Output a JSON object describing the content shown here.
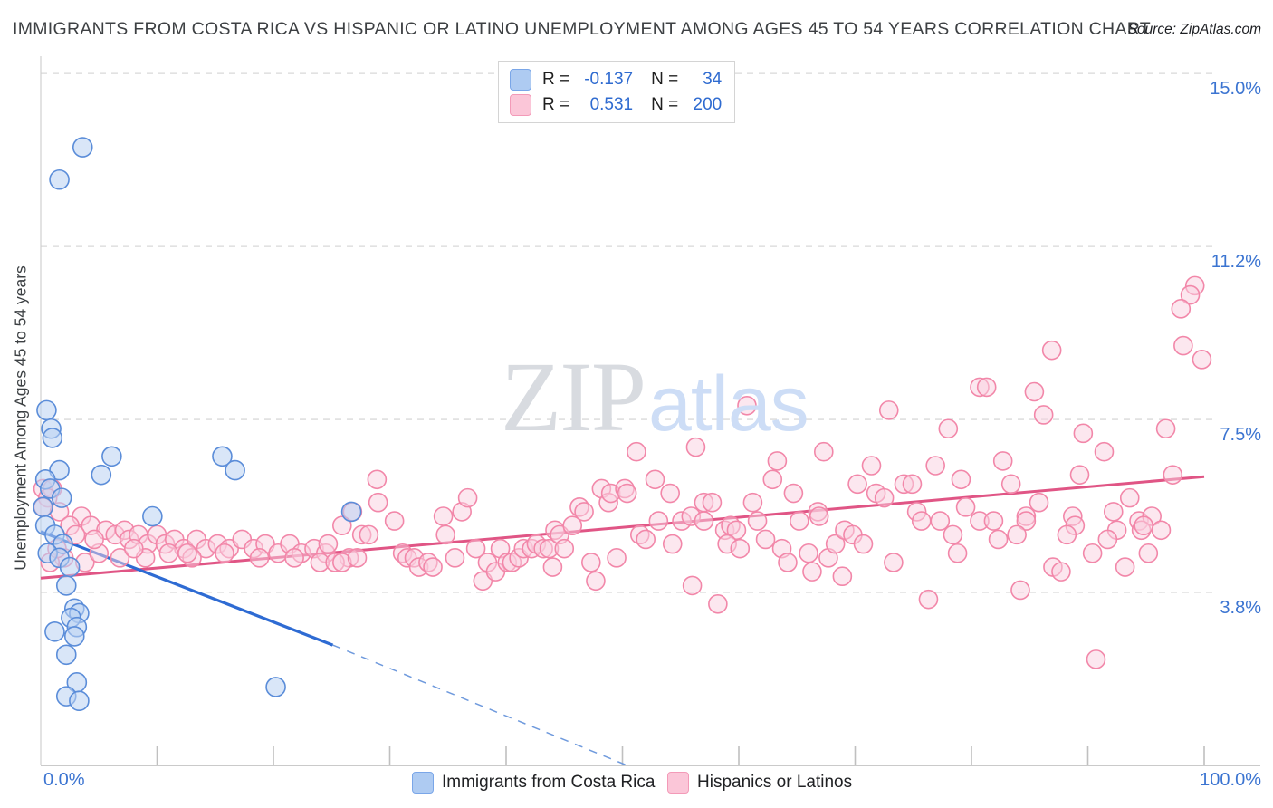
{
  "header": {
    "title": "IMMIGRANTS FROM COSTA RICA VS HISPANIC OR LATINO UNEMPLOYMENT AMONG AGES 45 TO 54 YEARS CORRELATION CHART",
    "source": "Source: ZipAtlas.com"
  },
  "y_axis": {
    "title": "Unemployment Among Ages 45 to 54 years",
    "ticks": [
      {
        "label": "15.0%",
        "value": 15.0
      },
      {
        "label": "11.2%",
        "value": 11.25
      },
      {
        "label": "7.5%",
        "value": 7.5
      },
      {
        "label": "3.8%",
        "value": 3.75
      }
    ]
  },
  "x_axis": {
    "min_label": "0.0%",
    "max_label": "100.0%",
    "min": 0,
    "max": 100,
    "tick_count": 10
  },
  "legend_box": {
    "rows": [
      {
        "series": "Immigrants from Costa Rica",
        "r_label": "R =",
        "r_value": "-0.137",
        "n_label": "N =",
        "n_value": "34"
      },
      {
        "series": "Hispanics or Latinos",
        "r_label": "R =",
        "r_value": "0.531",
        "n_label": "N =",
        "n_value": "200"
      }
    ]
  },
  "bottom_legend": {
    "items": [
      {
        "label": "Immigrants from Costa Rica",
        "series": "blue"
      },
      {
        "label": "Hispanics or Latinos",
        "series": "pink"
      }
    ]
  },
  "watermark": {
    "zip": "ZIP",
    "atlas": "atlas"
  },
  "colors": {
    "blue_point_stroke": "#5b8dd9",
    "blue_point_fill": "#bad2f3",
    "pink_point_stroke": "#f287a9",
    "pink_point_fill": "#f9cfdf",
    "blue_trend": "#2e6bd3",
    "blue_trend_dash": "#6f9add",
    "pink_trend": "#e05585",
    "grid": "#d9d9d9",
    "axis": "#b9b9b9",
    "tick": "#c0c0c0",
    "label_blue": "#3b74d1"
  },
  "chart_data": {
    "type": "scatter",
    "title": "Immigrants from Costa Rica vs Hispanic or Latino Unemployment Among Ages 45 to 54 years",
    "xlabel": "Immigrants from Costa Rica (%)",
    "ylabel": "Unemployment Among Ages 45 to 54 years (%)",
    "xlim": [
      0,
      100
    ],
    "ylim": [
      0,
      15.4
    ],
    "grid": "horizontal-dashed",
    "legend_position": "top-center",
    "series": [
      {
        "name": "Immigrants from Costa Rica",
        "R": -0.137,
        "N": 34,
        "points": [
          [
            3.6,
            13.4
          ],
          [
            1.6,
            12.7
          ],
          [
            0.5,
            7.7
          ],
          [
            0.9,
            7.3
          ],
          [
            1.0,
            7.1
          ],
          [
            6.1,
            6.7
          ],
          [
            15.6,
            6.7
          ],
          [
            16.7,
            6.4
          ],
          [
            5.2,
            6.3
          ],
          [
            1.6,
            6.4
          ],
          [
            0.4,
            6.2
          ],
          [
            0.8,
            6.0
          ],
          [
            1.8,
            5.8
          ],
          [
            0.2,
            5.6
          ],
          [
            26.7,
            5.5
          ],
          [
            9.6,
            5.4
          ],
          [
            0.4,
            5.2
          ],
          [
            1.2,
            5.0
          ],
          [
            1.9,
            4.8
          ],
          [
            0.6,
            4.6
          ],
          [
            1.6,
            4.5
          ],
          [
            2.5,
            4.3
          ],
          [
            2.2,
            3.9
          ],
          [
            2.9,
            3.4
          ],
          [
            3.3,
            3.3
          ],
          [
            2.6,
            3.2
          ],
          [
            3.1,
            3.0
          ],
          [
            1.2,
            2.9
          ],
          [
            2.9,
            2.8
          ],
          [
            2.2,
            2.4
          ],
          [
            3.1,
            1.8
          ],
          [
            20.2,
            1.7
          ],
          [
            2.2,
            1.5
          ],
          [
            3.3,
            1.4
          ]
        ]
      },
      {
        "name": "Hispanics or Latinos",
        "R": 0.531,
        "N": 200,
        "points": [
          [
            0.2,
            6.0
          ],
          [
            1.0,
            6.0
          ],
          [
            0.6,
            5.8
          ],
          [
            0.2,
            5.6
          ],
          [
            1.6,
            5.5
          ],
          [
            3.5,
            5.4
          ],
          [
            2.5,
            5.2
          ],
          [
            4.3,
            5.2
          ],
          [
            5.6,
            5.1
          ],
          [
            3.0,
            5.0
          ],
          [
            6.4,
            5.0
          ],
          [
            7.2,
            5.1
          ],
          [
            7.6,
            4.9
          ],
          [
            8.4,
            5.0
          ],
          [
            9.2,
            4.8
          ],
          [
            10.0,
            5.0
          ],
          [
            10.7,
            4.8
          ],
          [
            11.5,
            4.9
          ],
          [
            12.3,
            4.7
          ],
          [
            13.4,
            4.9
          ],
          [
            14.2,
            4.7
          ],
          [
            15.2,
            4.8
          ],
          [
            16.2,
            4.7
          ],
          [
            17.3,
            4.9
          ],
          [
            18.3,
            4.7
          ],
          [
            19.3,
            4.8
          ],
          [
            20.4,
            4.6
          ],
          [
            21.4,
            4.8
          ],
          [
            22.4,
            4.6
          ],
          [
            23.5,
            4.7
          ],
          [
            24.5,
            4.6
          ],
          [
            2.0,
            4.5
          ],
          [
            3.8,
            4.4
          ],
          [
            5.0,
            4.6
          ],
          [
            6.8,
            4.5
          ],
          [
            9.0,
            4.5
          ],
          [
            11.0,
            4.6
          ],
          [
            13.0,
            4.5
          ],
          [
            15.8,
            4.6
          ],
          [
            18.8,
            4.5
          ],
          [
            21.8,
            4.5
          ],
          [
            24.0,
            4.4
          ],
          [
            26.5,
            4.5
          ],
          [
            4.6,
            4.9
          ],
          [
            8.0,
            4.7
          ],
          [
            12.6,
            4.6
          ],
          [
            0.8,
            4.4
          ],
          [
            1.4,
            4.7
          ],
          [
            28.9,
            6.2
          ],
          [
            29.0,
            5.7
          ],
          [
            26.8,
            5.5
          ],
          [
            27.6,
            5.0
          ],
          [
            28.2,
            5.0
          ],
          [
            24.7,
            4.8
          ],
          [
            25.3,
            4.4
          ],
          [
            25.9,
            4.4
          ],
          [
            30.4,
            5.3
          ],
          [
            31.1,
            4.6
          ],
          [
            31.5,
            4.5
          ],
          [
            32.1,
            4.5
          ],
          [
            32.5,
            4.3
          ],
          [
            33.3,
            4.4
          ],
          [
            33.7,
            4.3
          ],
          [
            34.6,
            5.4
          ],
          [
            34.8,
            5.0
          ],
          [
            35.6,
            4.5
          ],
          [
            36.2,
            5.5
          ],
          [
            36.7,
            5.8
          ],
          [
            37.4,
            4.7
          ],
          [
            38.0,
            4.0
          ],
          [
            38.4,
            4.4
          ],
          [
            39.1,
            4.2
          ],
          [
            39.5,
            4.7
          ],
          [
            40.1,
            4.4
          ],
          [
            40.5,
            4.4
          ],
          [
            41.1,
            4.5
          ],
          [
            41.5,
            4.7
          ],
          [
            42.2,
            4.7
          ],
          [
            42.6,
            4.8
          ],
          [
            43.2,
            4.7
          ],
          [
            43.7,
            4.7
          ],
          [
            44.2,
            5.1
          ],
          [
            44.6,
            5.0
          ],
          [
            45.0,
            4.7
          ],
          [
            45.7,
            5.2
          ],
          [
            46.3,
            5.6
          ],
          [
            46.7,
            5.5
          ],
          [
            47.3,
            4.4
          ],
          [
            47.7,
            4.0
          ],
          [
            48.2,
            6.0
          ],
          [
            48.8,
            5.7
          ],
          [
            49.0,
            5.9
          ],
          [
            50.2,
            6.0
          ],
          [
            50.4,
            5.9
          ],
          [
            51.2,
            6.8
          ],
          [
            51.5,
            5.0
          ],
          [
            52.0,
            4.9
          ],
          [
            52.8,
            6.2
          ],
          [
            53.1,
            5.3
          ],
          [
            54.1,
            5.9
          ],
          [
            54.3,
            4.8
          ],
          [
            55.1,
            5.3
          ],
          [
            60.7,
            7.8
          ],
          [
            72.9,
            7.7
          ],
          [
            78.0,
            7.3
          ],
          [
            80.7,
            8.2
          ],
          [
            56.3,
            6.9
          ],
          [
            67.3,
            6.8
          ],
          [
            63.3,
            6.6
          ],
          [
            62.9,
            6.2
          ],
          [
            71.4,
            6.5
          ],
          [
            76.9,
            6.5
          ],
          [
            70.2,
            6.1
          ],
          [
            71.8,
            5.9
          ],
          [
            72.5,
            5.8
          ],
          [
            74.2,
            6.1
          ],
          [
            74.9,
            6.1
          ],
          [
            79.1,
            6.2
          ],
          [
            57.0,
            5.7
          ],
          [
            57.7,
            5.7
          ],
          [
            61.2,
            5.7
          ],
          [
            64.7,
            5.9
          ],
          [
            55.9,
            5.4
          ],
          [
            57.0,
            5.3
          ],
          [
            61.6,
            5.3
          ],
          [
            65.2,
            5.3
          ],
          [
            66.8,
            5.5
          ],
          [
            66.9,
            5.4
          ],
          [
            75.3,
            5.5
          ],
          [
            75.7,
            5.3
          ],
          [
            77.3,
            5.3
          ],
          [
            79.5,
            5.6
          ],
          [
            80.7,
            5.3
          ],
          [
            58.8,
            5.1
          ],
          [
            59.3,
            5.2
          ],
          [
            59.8,
            5.1
          ],
          [
            59.0,
            4.8
          ],
          [
            60.1,
            4.7
          ],
          [
            62.3,
            4.9
          ],
          [
            63.7,
            4.7
          ],
          [
            64.2,
            4.4
          ],
          [
            66.0,
            4.6
          ],
          [
            66.3,
            4.2
          ],
          [
            67.7,
            4.5
          ],
          [
            68.3,
            4.8
          ],
          [
            69.1,
            5.1
          ],
          [
            69.8,
            5.0
          ],
          [
            70.7,
            4.8
          ],
          [
            73.3,
            4.4
          ],
          [
            78.4,
            5.0
          ],
          [
            78.8,
            4.6
          ],
          [
            68.9,
            4.1
          ],
          [
            56.0,
            3.9
          ],
          [
            58.2,
            3.5
          ],
          [
            76.3,
            3.6
          ],
          [
            99.2,
            10.4
          ],
          [
            98.8,
            10.2
          ],
          [
            98.0,
            9.9
          ],
          [
            98.2,
            9.1
          ],
          [
            99.8,
            8.8
          ],
          [
            86.9,
            9.0
          ],
          [
            85.4,
            8.1
          ],
          [
            81.3,
            8.2
          ],
          [
            86.2,
            7.6
          ],
          [
            89.6,
            7.2
          ],
          [
            91.4,
            6.8
          ],
          [
            96.7,
            7.3
          ],
          [
            82.7,
            6.6
          ],
          [
            89.3,
            6.3
          ],
          [
            97.3,
            6.3
          ],
          [
            83.4,
            6.1
          ],
          [
            85.8,
            5.7
          ],
          [
            84.7,
            5.4
          ],
          [
            88.7,
            5.4
          ],
          [
            92.2,
            5.5
          ],
          [
            93.6,
            5.8
          ],
          [
            94.4,
            5.3
          ],
          [
            95.5,
            5.4
          ],
          [
            81.9,
            5.3
          ],
          [
            84.7,
            5.3
          ],
          [
            82.3,
            4.9
          ],
          [
            83.9,
            5.0
          ],
          [
            88.9,
            5.2
          ],
          [
            88.2,
            5.0
          ],
          [
            92.5,
            5.1
          ],
          [
            91.7,
            4.9
          ],
          [
            94.6,
            5.1
          ],
          [
            94.8,
            5.2
          ],
          [
            96.3,
            5.1
          ],
          [
            90.4,
            4.6
          ],
          [
            95.2,
            4.6
          ],
          [
            93.2,
            4.3
          ],
          [
            87.0,
            4.3
          ],
          [
            87.7,
            4.2
          ],
          [
            84.2,
            3.8
          ],
          [
            90.7,
            2.3
          ],
          [
            25.9,
            5.2
          ],
          [
            27.2,
            4.5
          ],
          [
            44.0,
            4.3
          ],
          [
            49.5,
            4.5
          ]
        ]
      }
    ],
    "trend_lines": [
      {
        "series": "Immigrants from Costa Rica",
        "solid": [
          [
            0,
            5.07
          ],
          [
            25.1,
            2.61
          ]
        ],
        "dashed": [
          [
            25.1,
            2.61
          ],
          [
            50.4,
            0.0
          ]
        ]
      },
      {
        "series": "Hispanics or Latinos",
        "solid": [
          [
            0,
            4.06
          ],
          [
            100,
            6.26
          ]
        ]
      }
    ]
  }
}
